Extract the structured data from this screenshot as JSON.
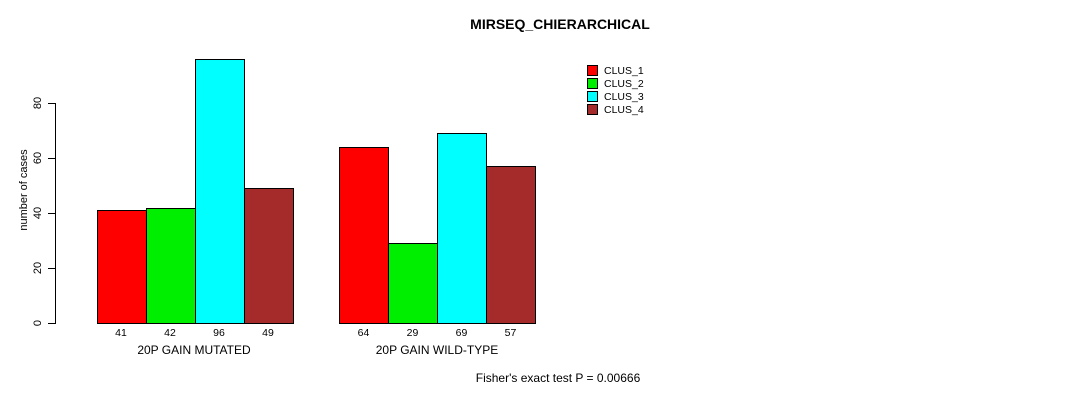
{
  "chart_data": {
    "type": "bar",
    "title": "MIRSEQ_CHIERARCHICAL",
    "ylabel": "number of cases",
    "xlabel": "",
    "yticks": [
      0,
      20,
      40,
      60,
      80
    ],
    "ylim": [
      0,
      96
    ],
    "grid": false,
    "legend_position": "top-right",
    "categories": [
      "20P GAIN MUTATED",
      "20P GAIN WILD-TYPE"
    ],
    "series": [
      {
        "name": "CLUS_1",
        "color": "#ff0000",
        "values": [
          41,
          64
        ]
      },
      {
        "name": "CLUS_2",
        "color": "#00ee00",
        "values": [
          42,
          29
        ]
      },
      {
        "name": "CLUS_3",
        "color": "#00ffff",
        "values": [
          96,
          69
        ]
      },
      {
        "name": "CLUS_4",
        "color": "#a52a2a",
        "values": [
          49,
          57
        ]
      }
    ],
    "groups": [
      {
        "label": "20P GAIN MUTATED",
        "values": [
          41,
          42,
          96,
          49
        ]
      },
      {
        "label": "20P GAIN WILD-TYPE",
        "values": [
          64,
          29,
          69,
          57
        ]
      }
    ],
    "value_labels_shown": true,
    "footnote": "Fisher's exact test P = 0.00666",
    "colors": {
      "background": "#ffffff",
      "axis": "#000000",
      "text": "#000000"
    }
  }
}
